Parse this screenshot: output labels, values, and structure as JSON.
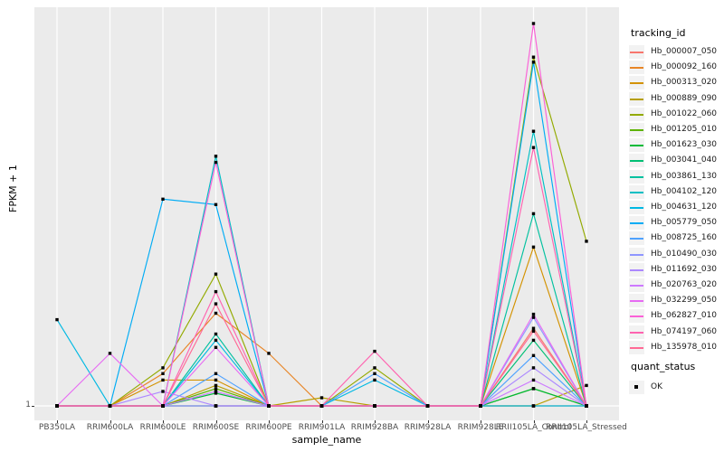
{
  "figure": {
    "y_axis": {
      "title": "FPKM + 1",
      "tick_labels": [
        "1"
      ]
    },
    "x_axis": {
      "title": "sample_name"
    },
    "legend": {
      "tracking_title": "tracking_id",
      "quant_title": "quant_status",
      "quant_items": [
        {
          "label": "OK",
          "marker": "black-square"
        }
      ]
    },
    "colors": {
      "panel_bg": "#EBEBEB",
      "grid": "#FFFFFF",
      "axis_text": "#4D4D4D",
      "point": "#000000",
      "legend_key_bg": "#F2F2F2"
    }
  },
  "chart_data": {
    "type": "line",
    "title": "",
    "xlabel": "sample_name",
    "ylabel": "FPKM + 1",
    "y_scale": "log10",
    "ylim": [
      1,
      1400
    ],
    "grid": "vertical-major-white-on-gray",
    "legend_position": "right",
    "point_marker": "black-square",
    "categories": [
      "PB350LA",
      "RRIM600LA",
      "RRIM600LE",
      "RRIM600SE",
      "RRIM600PE",
      "RRIM901LA",
      "RRIM928BA",
      "RRIM928LA",
      "RRIM928LE",
      "RRII105LA_Control",
      "RRII105LA_Stressed"
    ],
    "series": [
      {
        "name": "Hb_000007_050",
        "color": "#F8766D",
        "values": [
          1,
          1,
          1,
          1,
          1,
          1,
          1,
          1,
          1,
          4.1,
          1
        ]
      },
      {
        "name": "Hb_000092_160",
        "color": "#E88526",
        "values": [
          1,
          1,
          1.8,
          5.4,
          2.6,
          1,
          1,
          1,
          1,
          1,
          1
        ]
      },
      {
        "name": "Hb_000313_020",
        "color": "#D39200",
        "values": [
          1,
          1,
          1.6,
          1.6,
          1,
          1,
          1,
          1,
          1,
          18,
          1
        ]
      },
      {
        "name": "Hb_000889_090",
        "color": "#B79F00",
        "values": [
          1,
          1,
          1,
          1.45,
          1,
          1.16,
          1,
          1,
          1,
          1,
          1.45
        ]
      },
      {
        "name": "Hb_001022_060",
        "color": "#93AA00",
        "values": [
          1,
          1,
          2,
          11,
          1,
          1,
          2,
          1,
          1,
          570,
          20
        ]
      },
      {
        "name": "Hb_001205_010",
        "color": "#5EB300",
        "values": [
          1,
          1,
          1,
          1.37,
          1,
          1,
          1,
          1,
          1,
          1.37,
          1
        ]
      },
      {
        "name": "Hb_001623_030",
        "color": "#00BA38",
        "values": [
          1,
          1,
          1,
          1.26,
          1,
          1,
          1,
          1,
          1,
          1.37,
          1
        ]
      },
      {
        "name": "Hb_003041_040",
        "color": "#00BF74",
        "values": [
          1,
          1,
          1,
          1,
          1,
          1,
          1,
          1,
          1,
          3.3,
          1
        ]
      },
      {
        "name": "Hb_003861_130",
        "color": "#00C19F",
        "values": [
          1,
          1,
          1,
          3.7,
          1,
          1,
          1,
          1,
          1,
          33,
          1
        ]
      },
      {
        "name": "Hb_004102_120",
        "color": "#00BFC4",
        "values": [
          1,
          1,
          1,
          94,
          1,
          1,
          1,
          1,
          1,
          148,
          1
        ]
      },
      {
        "name": "Hb_004631_120",
        "color": "#00B9E3",
        "values": [
          4.8,
          1,
          1,
          3.3,
          1,
          1,
          1.6,
          1,
          1,
          1,
          1
        ]
      },
      {
        "name": "Hb_005779_050",
        "color": "#00ACF5",
        "values": [
          1,
          1,
          43,
          39,
          1,
          1,
          1,
          1,
          1,
          520,
          1
        ]
      },
      {
        "name": "Hb_008725_160",
        "color": "#4FA2FF",
        "values": [
          1,
          1,
          1,
          1.8,
          1,
          1,
          1.8,
          1,
          1,
          2.5,
          1
        ]
      },
      {
        "name": "Hb_010490_030",
        "color": "#8F96FF",
        "values": [
          1,
          1,
          1,
          1,
          1,
          1,
          1,
          1,
          1,
          5,
          1
        ]
      },
      {
        "name": "Hb_011692_030",
        "color": "#AC88FF",
        "values": [
          1,
          1,
          1.3,
          1,
          1,
          1,
          1,
          1,
          1,
          2,
          1
        ]
      },
      {
        "name": "Hb_020763_020",
        "color": "#CD79FF",
        "values": [
          1,
          1,
          1,
          1.3,
          1,
          1,
          1,
          1,
          1,
          1.6,
          1
        ]
      },
      {
        "name": "Hb_032299_050",
        "color": "#E76BF3",
        "values": [
          1,
          2.6,
          1,
          2.9,
          1,
          1,
          1,
          1,
          1,
          5.3,
          1
        ]
      },
      {
        "name": "Hb_062827_010",
        "color": "#FB61D7",
        "values": [
          1,
          1,
          1,
          84,
          1,
          1,
          1,
          1,
          1,
          1050,
          1
        ]
      },
      {
        "name": "Hb_074197_060",
        "color": "#FF63B0",
        "values": [
          1,
          1,
          1,
          8,
          1,
          1,
          2.7,
          1,
          1,
          110,
          1
        ]
      },
      {
        "name": "Hb_135978_010",
        "color": "#FF6A95",
        "values": [
          1,
          1,
          1,
          6.4,
          1,
          1,
          1,
          1,
          1,
          3.9,
          1
        ]
      }
    ]
  }
}
